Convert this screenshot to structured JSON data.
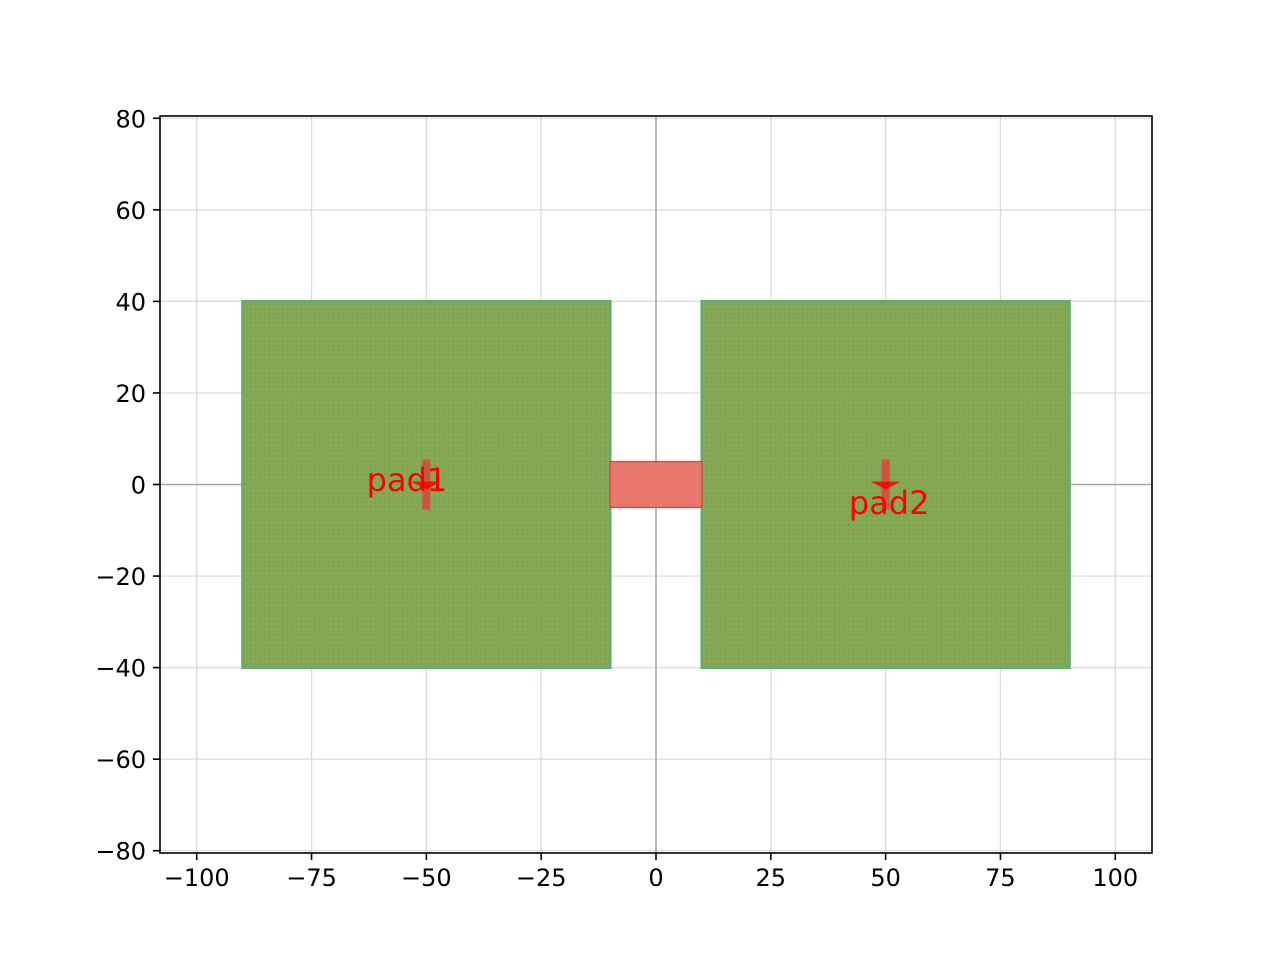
{
  "chart_data": {
    "type": "layout",
    "title": "",
    "xlabel": "",
    "ylabel": "",
    "xlim": [
      -108,
      108
    ],
    "ylim": [
      -80.5,
      80.5
    ],
    "grid": true,
    "xticks": [
      -100,
      -75,
      -50,
      -25,
      0,
      25,
      50,
      75,
      100
    ],
    "xtick_labels": [
      "−100",
      "−75",
      "−50",
      "−25",
      "0",
      "25",
      "50",
      "75",
      "100"
    ],
    "yticks": [
      80,
      60,
      40,
      20,
      0,
      -20,
      -40,
      -60,
      -80
    ],
    "ytick_labels": [
      "80",
      "60",
      "40",
      "20",
      "0",
      "−20",
      "−40",
      "−60",
      "−80"
    ],
    "pads": [
      {
        "x0": -90,
        "x1": -10,
        "y0": -40,
        "y1": 40
      },
      {
        "x0": 10,
        "x1": 90,
        "y0": -40,
        "y1": 40
      }
    ],
    "bridge": {
      "x0": -10,
      "x1": 10,
      "y0": -5,
      "y1": 5
    },
    "ports": [
      {
        "label": "pad1",
        "x": -50,
        "y": 0,
        "label_x": -63,
        "label_y": 1
      },
      {
        "label": "pad2",
        "x": 50,
        "y": 0,
        "label_x": 42,
        "label_y": -4
      }
    ],
    "colors": {
      "pad_fill": "#85a955",
      "pad_edge": "#6aaa6a",
      "pad_dot": "#7fa04f",
      "bridge_fill": "#e8776c",
      "bridge_edge": "#e04a40",
      "port_marker": "#d9493f",
      "port_label": "#ff0000",
      "grid": "#d9d9d9",
      "axis_line": "#a8a8a8"
    }
  }
}
